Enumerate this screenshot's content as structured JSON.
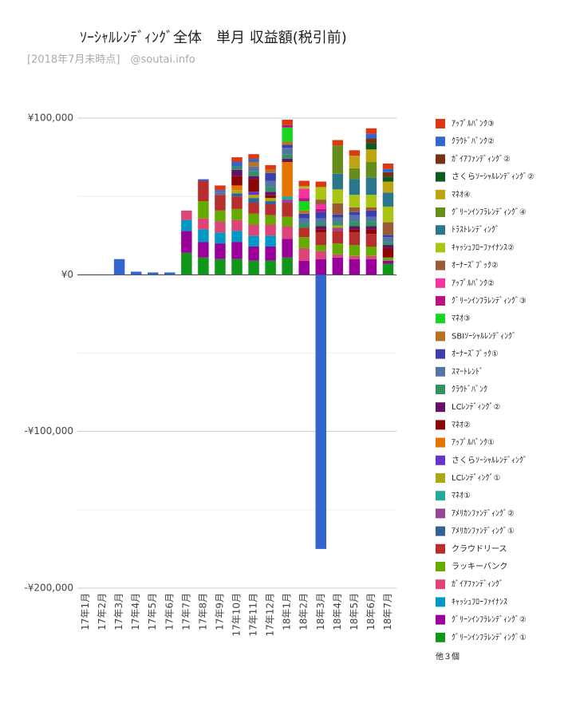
{
  "chart_data": {
    "type": "stacked-bar",
    "title": "ｿｰｼｬﾙﾚﾝﾃﾞｨﾝｸﾞ全体　単月 収益額(税引前)",
    "subtitle": "[2018年7月末時点]　@soutai.info",
    "categories": [
      "17年1月",
      "17年2月",
      "17年3月",
      "17年4月",
      "17年5月",
      "17年6月",
      "17年7月",
      "17年8月",
      "17年9月",
      "17年10月",
      "17年11月",
      "17年12月",
      "18年1月",
      "18年2月",
      "18年3月",
      "18年4月",
      "18年5月",
      "18年6月",
      "18年7月"
    ],
    "ylim": [
      -200000,
      100000
    ],
    "yticks": [
      {
        "value": -200000,
        "label": "-¥200,000"
      },
      {
        "value": -100000,
        "label": "-¥100,000"
      },
      {
        "value": 0,
        "label": "¥0"
      },
      {
        "value": 100000,
        "label": "¥100,000"
      }
    ],
    "minor_yticks": [
      -150000,
      -50000,
      50000
    ],
    "grid": true,
    "legend_more": "他３個",
    "series": [
      {
        "name": "ｱｯﾌﾟﾙﾊﾞﾝｸ③",
        "color": "#dc3912",
        "values": [
          0,
          0,
          0,
          0,
          0,
          0,
          0,
          0,
          3000,
          3000,
          3000,
          3000,
          3500,
          3500,
          3500,
          3500,
          3500,
          3500,
          3500
        ]
      },
      {
        "name": "ｸﾗｳﾄﾞﾊﾞﾝｸ②",
        "color": "#3366cc",
        "values": [
          0,
          0,
          10000,
          2000,
          1500,
          1500,
          0,
          1000,
          1000,
          3000,
          2000,
          0,
          0,
          0,
          -175000,
          0,
          0,
          3000,
          2000
        ]
      },
      {
        "name": "ｶﾞｲｱﾌｧﾝﾃﾞｨﾝｸﾞ②",
        "color": "#743411",
        "values": [
          0,
          0,
          0,
          0,
          0,
          0,
          0,
          0,
          0,
          0,
          0,
          0,
          0,
          0,
          0,
          0,
          0,
          3000,
          3000
        ]
      },
      {
        "name": "さくらｿｰｼｬﾙﾚﾝﾃﾞｨﾝｸﾞ②",
        "color": "#0c5922",
        "values": [
          0,
          0,
          0,
          0,
          0,
          0,
          0,
          0,
          0,
          0,
          0,
          0,
          0,
          0,
          0,
          0,
          0,
          4000,
          3000
        ]
      },
      {
        "name": "ﾏﾈｵ④",
        "color": "#bea413",
        "values": [
          0,
          0,
          0,
          0,
          0,
          0,
          0,
          0,
          0,
          0,
          0,
          0,
          0,
          0,
          0,
          0,
          8000,
          8000,
          7000
        ]
      },
      {
        "name": "ｸﾞﾘｰﾝｲﾝﾌﾗﾚﾝﾃﾞｨﾝｸﾞ④",
        "color": "#668d1c",
        "values": [
          0,
          0,
          0,
          0,
          0,
          0,
          0,
          0,
          0,
          0,
          0,
          0,
          0,
          0,
          0,
          18000,
          7000,
          10000,
          0
        ]
      },
      {
        "name": "ﾄﾗｽﾄﾚﾝﾃﾞｨﾝｸﾞ",
        "color": "#2a778d",
        "values": [
          0,
          0,
          0,
          0,
          0,
          0,
          0,
          0,
          0,
          0,
          0,
          0,
          0,
          0,
          0,
          10000,
          10000,
          11000,
          9000
        ]
      },
      {
        "name": "ｷｬｯｼｭﾌﾛｰﾌｧｲﾅﾝｽ②",
        "color": "#a9c413",
        "values": [
          0,
          0,
          0,
          0,
          0,
          0,
          0,
          0,
          0,
          0,
          0,
          0,
          0,
          1500,
          8000,
          9000,
          8000,
          8000,
          10000
        ]
      },
      {
        "name": "ｵｰﾅｰｽﾞﾌﾞｯｸ②",
        "color": "#9c5935",
        "values": [
          0,
          0,
          0,
          0,
          0,
          0,
          0,
          0,
          0,
          0,
          0,
          0,
          0,
          0,
          3000,
          7000,
          3000,
          2000,
          8000
        ]
      },
      {
        "name": "ｱｯﾌﾟﾙﾊﾞﾝｸ②",
        "color": "#f4359e",
        "values": [
          0,
          0,
          0,
          0,
          0,
          0,
          0,
          0,
          0,
          0,
          0,
          0,
          0,
          6000,
          3000,
          0,
          0,
          0,
          0
        ]
      },
      {
        "name": "ｸﾞﾘｰﾝｲﾝﾌﾗﾚﾝﾃﾞｨﾝｸﾞ③",
        "color": "#b91383",
        "values": [
          0,
          0,
          0,
          0,
          0,
          0,
          0,
          0,
          0,
          0,
          0,
          0,
          1500,
          2000,
          2000,
          0,
          0,
          0,
          0
        ]
      },
      {
        "name": "ﾏﾈｵ③",
        "color": "#16d620",
        "values": [
          0,
          0,
          0,
          0,
          0,
          0,
          0,
          0,
          0,
          0,
          0,
          0,
          9000,
          6000,
          0,
          0,
          0,
          0,
          0
        ]
      },
      {
        "name": "SBIｿｰｼｬﾙﾚﾝﾃﾞｨﾝｸﾞ",
        "color": "#b77322",
        "values": [
          0,
          0,
          0,
          0,
          0,
          0,
          0,
          0,
          0,
          0,
          3000,
          2000,
          2000,
          2000,
          0,
          0,
          0,
          0,
          0
        ]
      },
      {
        "name": "ｵｰﾅｰｽﾞﾌﾞｯｸ①",
        "color": "#3b3eac",
        "values": [
          0,
          0,
          0,
          0,
          0,
          0,
          0,
          0,
          0,
          0,
          0,
          5000,
          2000,
          3000,
          4000,
          2000,
          2000,
          4000,
          1500
        ]
      },
      {
        "name": "ｽﾏｰﾄﾚﾝﾄﾞ",
        "color": "#5574a6",
        "values": [
          0,
          0,
          0,
          0,
          0,
          0,
          0,
          0,
          2000,
          0,
          3000,
          4000,
          4000,
          3000,
          3000,
          3000,
          4000,
          3000,
          3000
        ]
      },
      {
        "name": "ｸﾗｳﾄﾞﾊﾞﾝｸ",
        "color": "#329262",
        "values": [
          0,
          0,
          0,
          0,
          0,
          0,
          0,
          0,
          0,
          2000,
          3000,
          3000,
          3000,
          3000,
          2000,
          2000,
          3000,
          3000,
          2000
        ]
      },
      {
        "name": "LCﾚﾝﾃﾞｨﾝｸﾞ②",
        "color": "#651067",
        "values": [
          0,
          0,
          0,
          0,
          0,
          0,
          0,
          0,
          0,
          4000,
          2000,
          2000,
          2000,
          0,
          2000,
          0,
          2000,
          2000,
          2000
        ]
      },
      {
        "name": "ﾏﾈｵ②",
        "color": "#8b0707",
        "values": [
          0,
          0,
          0,
          0,
          0,
          0,
          0,
          0,
          0,
          6000,
          8000,
          2000,
          0,
          0,
          2000,
          0,
          2000,
          3000,
          6000
        ]
      },
      {
        "name": "ｱｯﾌﾟﾙﾊﾞﾝｸ①",
        "color": "#e67300",
        "values": [
          0,
          0,
          0,
          0,
          0,
          0,
          0,
          0,
          0,
          3000,
          0,
          0,
          22000,
          0,
          0,
          0,
          0,
          0,
          0
        ]
      },
      {
        "name": "さくらｿｰｼｬﾙﾚﾝﾃﾞｨﾝｸﾞ",
        "color": "#6633cc",
        "values": [
          0,
          0,
          0,
          0,
          0,
          0,
          0,
          0,
          0,
          0,
          2000,
          0,
          0,
          0,
          0,
          0,
          0,
          0,
          0
        ]
      },
      {
        "name": "LCﾚﾝﾃﾞｨﾝｸﾞ①",
        "color": "#aaaa11",
        "values": [
          0,
          0,
          0,
          0,
          0,
          0,
          0,
          0,
          0,
          2000,
          2000,
          2000,
          0,
          0,
          0,
          1500,
          0,
          0,
          0
        ]
      },
      {
        "name": "ﾏﾈｵ①",
        "color": "#22aa99",
        "values": [
          0,
          0,
          0,
          0,
          0,
          0,
          0,
          0,
          0,
          0,
          0,
          0,
          2000,
          0,
          0,
          0,
          0,
          0,
          0
        ]
      },
      {
        "name": "ｱﾒﾘｶﾝﾌｧﾝﾃﾞｨﾝｸﾞ②",
        "color": "#994499",
        "values": [
          0,
          0,
          0,
          0,
          0,
          0,
          0,
          0,
          0,
          0,
          0,
          0,
          2000,
          0,
          0,
          2000,
          0,
          0,
          0
        ]
      },
      {
        "name": "ｱﾒﾘｶﾝﾌｧﾝﾃﾞｨﾝｸﾞ①",
        "color": "#316395",
        "values": [
          0,
          0,
          0,
          0,
          0,
          0,
          0,
          0,
          0,
          2000,
          3000,
          2000,
          0,
          0,
          0,
          0,
          0,
          0,
          0
        ]
      },
      {
        "name": "クラウドリース",
        "color": "#b82e2e",
        "values": [
          0,
          0,
          0,
          0,
          0,
          0,
          0,
          13000,
          10000,
          8000,
          7000,
          7000,
          9000,
          6000,
          8000,
          8000,
          8000,
          8000,
          0
        ]
      },
      {
        "name": "ラッキーバンク",
        "color": "#66aa00",
        "values": [
          0,
          0,
          0,
          0,
          0,
          0,
          0,
          11000,
          7000,
          7000,
          7000,
          6000,
          6000,
          7000,
          4000,
          7000,
          7000,
          6000,
          2000
        ]
      },
      {
        "name": "ｶﾞｲｱﾌｧﾝﾃﾞｨﾝｸﾞ",
        "color": "#dd4477",
        "values": [
          0,
          0,
          0,
          0,
          0,
          0,
          6000,
          7000,
          7000,
          7000,
          7000,
          7000,
          8000,
          8000,
          5000,
          2000,
          2000,
          2000,
          0
        ]
      },
      {
        "name": "ｷｬｯｼｭﾌﾛｰﾌｧｲﾅﾝｽ",
        "color": "#0099c6",
        "values": [
          0,
          0,
          0,
          0,
          0,
          0,
          7000,
          8000,
          7000,
          7000,
          7000,
          7000,
          0,
          0,
          0,
          0,
          0,
          0,
          0
        ]
      },
      {
        "name": "ｸﾞﾘｰﾝｲﾝﾌﾗﾚﾝﾃﾞｨﾝｸﾞ②",
        "color": "#990099",
        "values": [
          0,
          0,
          0,
          0,
          0,
          0,
          14000,
          10000,
          10000,
          11000,
          9000,
          9000,
          12000,
          9000,
          10000,
          11000,
          10000,
          10000,
          2000
        ]
      },
      {
        "name": "ｸﾞﾘｰﾝｲﾝﾌﾗﾚﾝﾃﾞｨﾝｸﾞ①",
        "color": "#109618",
        "values": [
          0,
          0,
          0,
          0,
          0,
          0,
          14000,
          11000,
          10000,
          10000,
          9000,
          9000,
          11000,
          0,
          0,
          0,
          0,
          0,
          7000
        ]
      }
    ]
  }
}
